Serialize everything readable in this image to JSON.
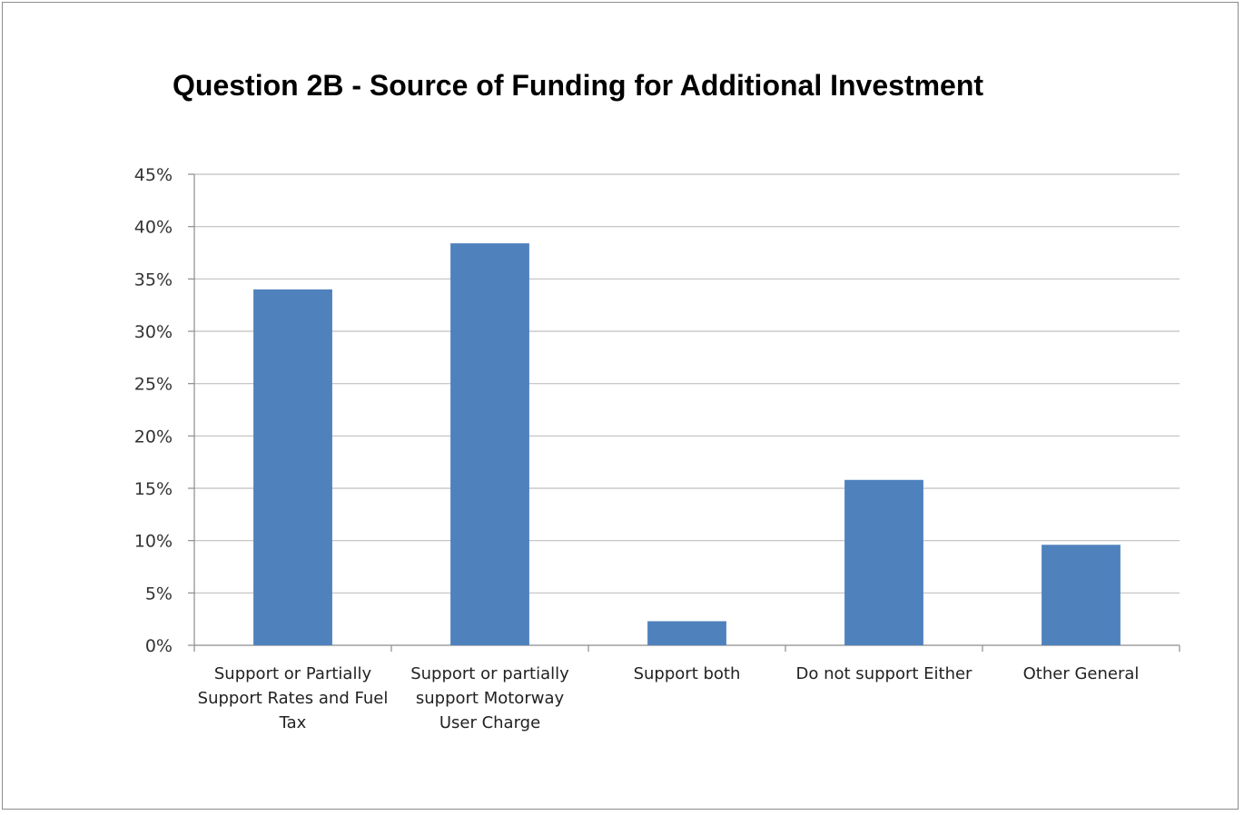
{
  "chart_data": {
    "type": "bar",
    "title": "Question 2B - Source of Funding for Additional Investment",
    "xlabel": "",
    "ylabel": "",
    "categories": [
      [
        "Support or Partially",
        "Support Rates and Fuel",
        "Tax"
      ],
      [
        "Support or partially",
        "support Motorway",
        "User Charge"
      ],
      [
        "Support both"
      ],
      [
        "Do not support Either"
      ],
      [
        "Other General"
      ]
    ],
    "values": [
      0.34,
      0.384,
      0.023,
      0.158,
      0.096
    ],
    "ylim": [
      0,
      0.45
    ],
    "yticks": [
      0,
      0.05,
      0.1,
      0.15,
      0.2,
      0.25,
      0.3,
      0.35,
      0.4,
      0.45
    ],
    "ytick_labels": [
      "0%",
      "5%",
      "10%",
      "15%",
      "20%",
      "25%",
      "30%",
      "35%",
      "40%",
      "45%"
    ],
    "grid": true,
    "legend": "none",
    "bar_color": "#4f81bd",
    "grid_color": "#bfbfbf"
  }
}
